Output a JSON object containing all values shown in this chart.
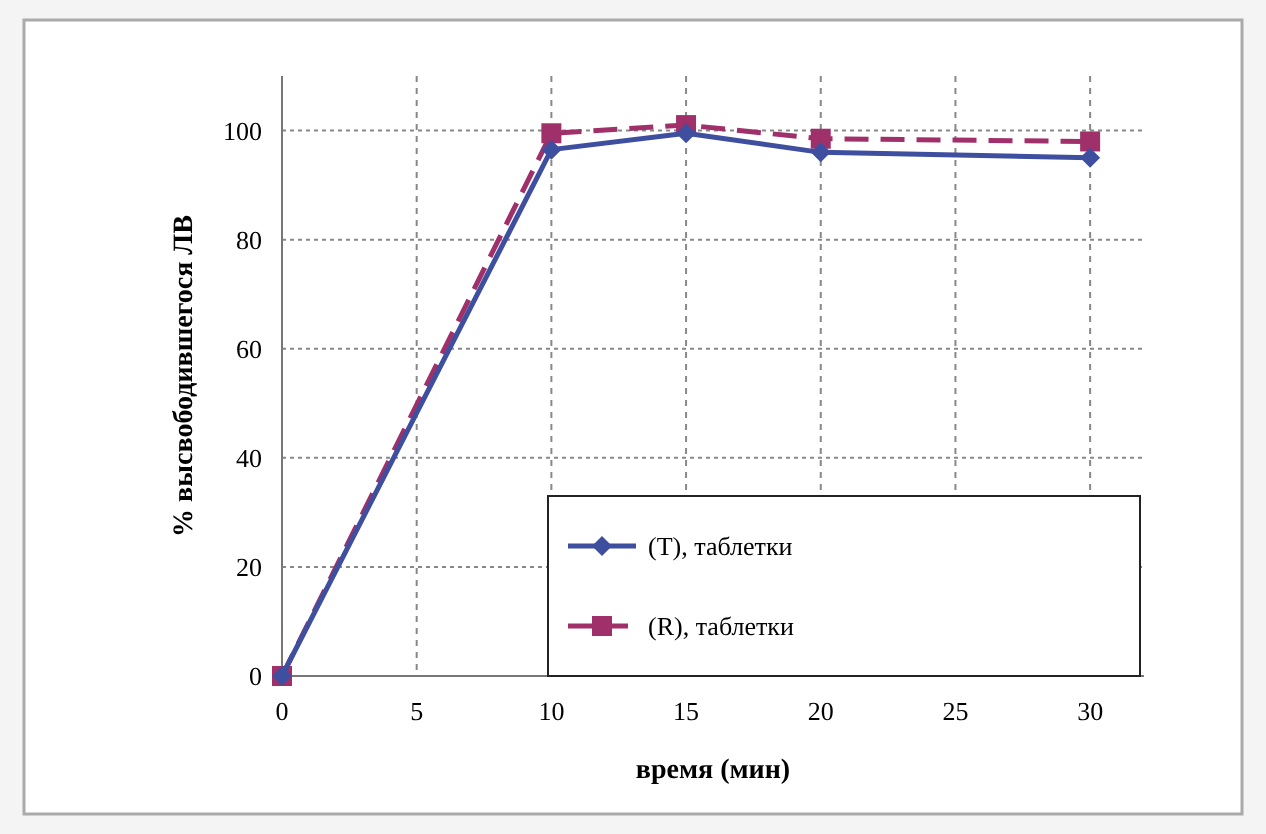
{
  "chart_data": {
    "type": "line",
    "xlabel": "время (мин)",
    "ylabel": "% высвободившегося ЛВ",
    "x": [
      0,
      10,
      15,
      20,
      30
    ],
    "series": [
      {
        "name": "(T), таблетки",
        "color": "#3f4fa0",
        "values": [
          0,
          96.5,
          99.5,
          96,
          95
        ],
        "marker": "diamond",
        "line_style": "solid"
      },
      {
        "name": "(R), таблетки",
        "color": "#a0306a",
        "values": [
          0,
          99.5,
          101,
          98.5,
          98
        ],
        "marker": "square",
        "line_style": "dashed"
      }
    ],
    "xlim": [
      0,
      32
    ],
    "xticks": [
      0,
      5,
      10,
      15,
      20,
      25,
      30
    ],
    "ylim": [
      0,
      110
    ],
    "yticks": [
      0,
      20,
      40,
      60,
      80,
      100
    ],
    "grid": true,
    "legend": "bottom right"
  }
}
